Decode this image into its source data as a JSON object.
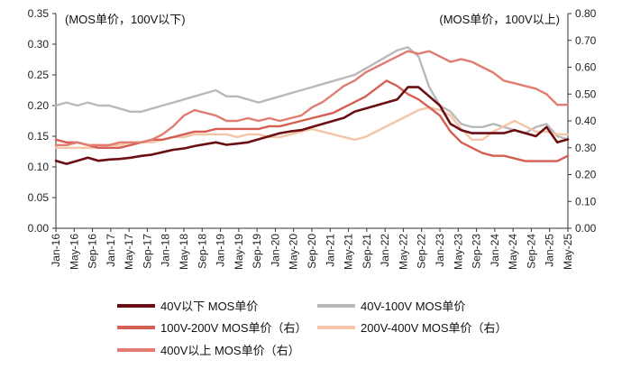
{
  "chart_data": {
    "type": "line",
    "title": "",
    "left_axis_note": "(MOS单价，100V以下)",
    "right_axis_note": "(MOS单价，100V以上)",
    "ylim_left": [
      0,
      0.35
    ],
    "ylim_right": [
      0,
      0.8
    ],
    "yticks_left": [
      "0.00",
      "0.05",
      "0.10",
      "0.15",
      "0.20",
      "0.25",
      "0.30",
      "0.35"
    ],
    "yticks_right": [
      "0.00",
      "0.10",
      "0.20",
      "0.30",
      "0.40",
      "0.50",
      "0.60",
      "0.70",
      "0.80"
    ],
    "x_tick_labels": [
      "Jan-16",
      "May-16",
      "Sep-16",
      "Jan-17",
      "May-17",
      "Sep-17",
      "Jan-18",
      "May-18",
      "Sep-18",
      "Jan-19",
      "May-19",
      "Sep-19",
      "Jan-20",
      "May-20",
      "Sep-20",
      "Jan-21",
      "May-21",
      "Sep-21",
      "Jan-22",
      "May-22",
      "Sep-22",
      "Jan-23",
      "May-23",
      "Sep-23",
      "Jan-24",
      "May-24",
      "Sep-24",
      "Jan-25",
      "May-25"
    ],
    "series": [
      {
        "name": "40V以下 MOS单价",
        "axis": "left",
        "color": "#6b0f12",
        "values": [
          0.11,
          0.105,
          0.11,
          0.115,
          0.11,
          0.112,
          0.113,
          0.115,
          0.118,
          0.12,
          0.124,
          0.128,
          0.13,
          0.134,
          0.137,
          0.14,
          0.136,
          0.138,
          0.14,
          0.145,
          0.15,
          0.155,
          0.158,
          0.16,
          0.165,
          0.17,
          0.175,
          0.18,
          0.19,
          0.195,
          0.2,
          0.205,
          0.21,
          0.23,
          0.23,
          0.215,
          0.2,
          0.17,
          0.16,
          0.155,
          0.155,
          0.155,
          0.155,
          0.16,
          0.155,
          0.15,
          0.165,
          0.14,
          0.145
        ]
      },
      {
        "name": "40V-100V MOS单价",
        "axis": "left",
        "color": "#b9b9b9",
        "values": [
          0.2,
          0.205,
          0.2,
          0.205,
          0.2,
          0.2,
          0.195,
          0.19,
          0.19,
          0.195,
          0.2,
          0.205,
          0.21,
          0.215,
          0.22,
          0.225,
          0.215,
          0.215,
          0.21,
          0.205,
          0.21,
          0.215,
          0.22,
          0.225,
          0.23,
          0.235,
          0.24,
          0.245,
          0.25,
          0.26,
          0.27,
          0.28,
          0.29,
          0.295,
          0.28,
          0.23,
          0.2,
          0.19,
          0.17,
          0.165,
          0.165,
          0.17,
          0.165,
          0.16,
          0.155,
          0.165,
          0.17,
          0.15,
          0.145
        ]
      },
      {
        "name": "100V-200V MOS单价（右）",
        "axis": "right",
        "color": "#d45f52",
        "values": [
          0.33,
          0.32,
          0.32,
          0.31,
          0.3,
          0.3,
          0.3,
          0.31,
          0.32,
          0.33,
          0.33,
          0.34,
          0.35,
          0.36,
          0.36,
          0.37,
          0.37,
          0.37,
          0.37,
          0.37,
          0.38,
          0.38,
          0.39,
          0.4,
          0.41,
          0.42,
          0.43,
          0.45,
          0.47,
          0.49,
          0.52,
          0.55,
          0.53,
          0.5,
          0.48,
          0.45,
          0.42,
          0.36,
          0.32,
          0.3,
          0.28,
          0.27,
          0.27,
          0.26,
          0.25,
          0.25,
          0.25,
          0.25,
          0.27
        ]
      },
      {
        "name": "200V-400V MOS单价（右）",
        "axis": "right",
        "color": "#f4c5a6",
        "values": [
          0.3,
          0.3,
          0.3,
          0.3,
          0.3,
          0.31,
          0.31,
          0.32,
          0.32,
          0.32,
          0.33,
          0.34,
          0.34,
          0.35,
          0.35,
          0.35,
          0.35,
          0.34,
          0.35,
          0.35,
          0.34,
          0.34,
          0.35,
          0.36,
          0.37,
          0.36,
          0.35,
          0.34,
          0.33,
          0.34,
          0.36,
          0.38,
          0.4,
          0.42,
          0.44,
          0.45,
          0.44,
          0.42,
          0.37,
          0.33,
          0.33,
          0.36,
          0.38,
          0.4,
          0.38,
          0.36,
          0.36,
          0.35,
          0.35
        ]
      },
      {
        "name": "400V以上 MOS单价（右）",
        "axis": "right",
        "color": "#e07c70",
        "values": [
          0.31,
          0.31,
          0.32,
          0.31,
          0.31,
          0.31,
          0.32,
          0.32,
          0.32,
          0.33,
          0.35,
          0.38,
          0.42,
          0.44,
          0.43,
          0.42,
          0.4,
          0.4,
          0.41,
          0.4,
          0.41,
          0.4,
          0.41,
          0.42,
          0.45,
          0.47,
          0.5,
          0.53,
          0.55,
          0.58,
          0.6,
          0.62,
          0.64,
          0.66,
          0.65,
          0.66,
          0.64,
          0.62,
          0.63,
          0.62,
          0.6,
          0.58,
          0.55,
          0.54,
          0.53,
          0.52,
          0.5,
          0.46,
          0.46
        ]
      }
    ]
  }
}
